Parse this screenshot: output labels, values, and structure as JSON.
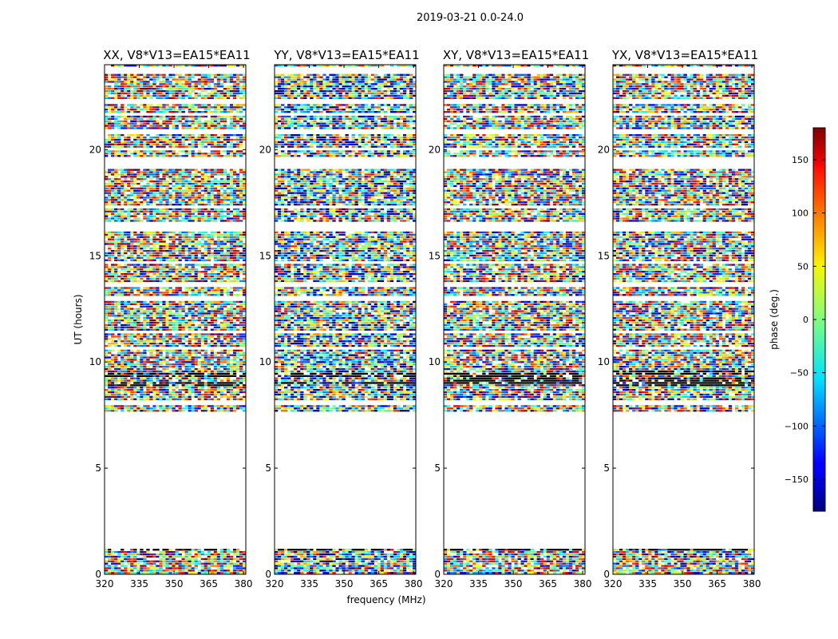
{
  "chart_data": {
    "type": "heatmap",
    "suptitle": "2019-03-21 0.0-24.0",
    "xlabel": "frequency (MHz)",
    "ylabel": "UT (hours)",
    "xlim": [
      320,
      381
    ],
    "ylim": [
      0,
      24
    ],
    "xticks": [
      "320",
      "335",
      "350",
      "365",
      "380"
    ],
    "yticks": [
      "0",
      "5",
      "10",
      "15",
      "20"
    ],
    "panels": [
      {
        "title": "XX, V8*V13=EA15*EA11",
        "bias": 40
      },
      {
        "title": "YY, V8*V13=EA15*EA11",
        "bias": -60
      },
      {
        "title": "XY, V8*V13=EA15*EA11",
        "bias": 0
      },
      {
        "title": "YX, V8*V13=EA15*EA11",
        "bias": 0
      }
    ],
    "data_bands_hours": [
      [
        0.0,
        1.25
      ],
      [
        7.6,
        20.7
      ],
      [
        21.0,
        23.6
      ],
      [
        23.9,
        24.0
      ]
    ],
    "colorbar": {
      "label": "phase (deg.)",
      "range": [
        -180,
        180
      ],
      "ticks": [
        "150",
        "100",
        "50",
        "0",
        "−50",
        "−100",
        "−150"
      ],
      "tick_values": [
        150,
        100,
        50,
        0,
        -50,
        -100,
        -150
      ],
      "colormap": "jet"
    }
  }
}
